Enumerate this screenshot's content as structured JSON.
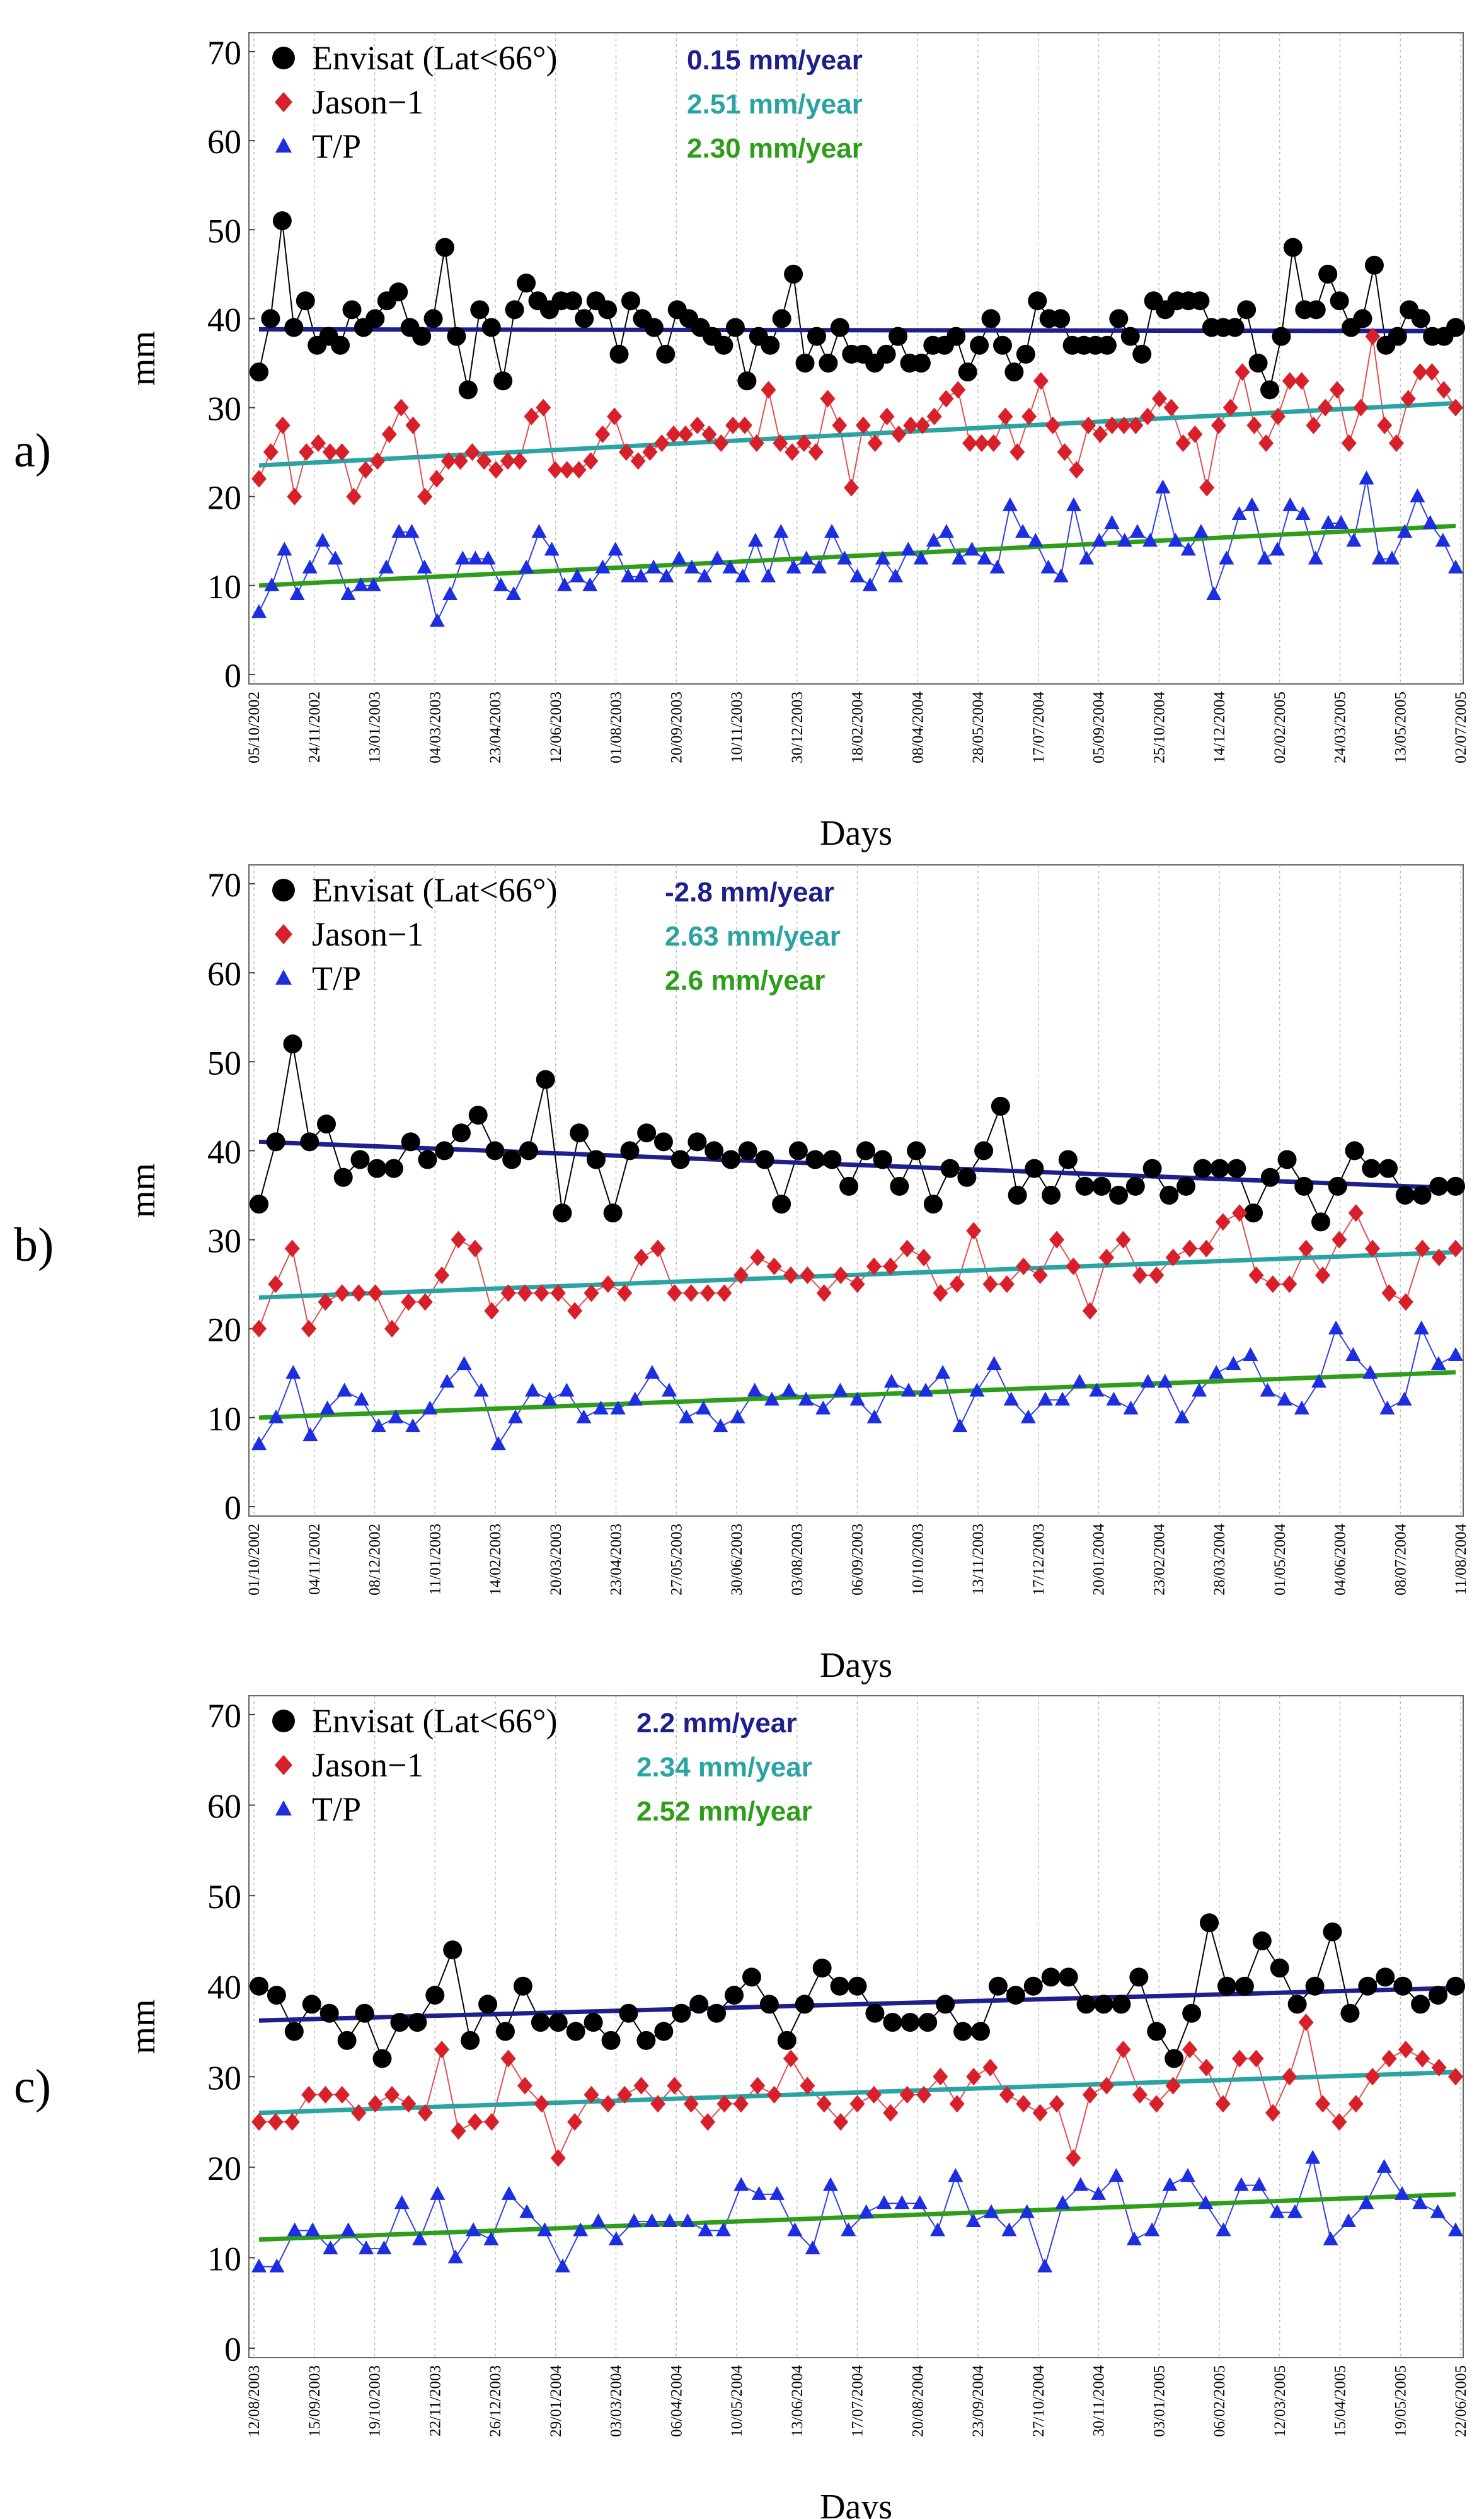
{
  "chart_data": [
    {
      "type": "scatter",
      "panel_label": "a)",
      "xlabel": "Days",
      "ylabel": "mm",
      "ylim": [
        0,
        70
      ],
      "yticks": [
        0,
        10,
        20,
        30,
        40,
        50,
        60,
        70
      ],
      "grid": true,
      "legend": "top-left",
      "x_tick_labels": [
        "05/10/2002",
        "24/11/2002",
        "13/01/2003",
        "04/03/2003",
        "23/04/2003",
        "12/06/2003",
        "01/08/2003",
        "20/09/2003",
        "10/11/2003",
        "30/12/2003",
        "18/02/2004",
        "08/04/2004",
        "28/05/2004",
        "17/07/2004",
        "05/09/2004",
        "25/10/2004",
        "14/12/2004",
        "02/02/2005",
        "24/03/2005",
        "13/05/2005",
        "02/07/2005"
      ],
      "series": [
        {
          "name": "Envisat (Lat<66°)",
          "marker": "circle",
          "color": "#000000",
          "values": [
            34,
            40,
            51,
            39,
            42,
            37,
            38,
            37,
            41,
            39,
            40,
            42,
            43,
            39,
            38,
            40,
            48,
            38,
            32,
            41,
            39,
            33,
            41,
            44,
            42,
            41,
            42,
            42,
            40,
            42,
            41,
            36,
            42,
            40,
            39,
            36,
            41,
            40,
            39,
            38,
            37,
            39,
            33,
            38,
            37,
            40,
            45,
            35,
            38,
            35,
            39,
            36,
            36,
            35,
            36,
            38,
            35,
            35,
            37,
            37,
            38,
            34,
            37,
            40,
            37,
            34,
            36,
            42,
            40,
            40,
            37,
            37,
            37,
            37,
            40,
            38,
            36,
            42,
            41,
            42,
            42,
            42,
            39,
            39,
            39,
            41,
            35,
            32,
            38,
            48,
            41,
            41,
            45,
            42,
            39,
            40,
            46,
            37,
            38,
            41,
            40,
            38,
            38,
            39
          ],
          "trend": [
            38.8,
            38.6
          ],
          "trend_color": "#1f1f8c",
          "trend_label": "0.15 mm/year",
          "line_color": "#000000"
        },
        {
          "name": "Jason−1",
          "marker": "diamond",
          "color": "#d8202a",
          "values": [
            22,
            25,
            28,
            20,
            25,
            26,
            25,
            25,
            20,
            23,
            24,
            27,
            30,
            28,
            20,
            22,
            24,
            24,
            25,
            24,
            23,
            24,
            24,
            29,
            30,
            23,
            23,
            23,
            24,
            27,
            29,
            25,
            24,
            25,
            26,
            27,
            27,
            28,
            27,
            26,
            28,
            28,
            26,
            32,
            26,
            25,
            26,
            25,
            31,
            28,
            21,
            28,
            26,
            29,
            27,
            28,
            28,
            29,
            31,
            32,
            26,
            26,
            26,
            29,
            25,
            29,
            33,
            28,
            25,
            23,
            28,
            27,
            28,
            28,
            28,
            29,
            31,
            30,
            26,
            27,
            21,
            28,
            30,
            34,
            28,
            26,
            29,
            33,
            33,
            28,
            30,
            32,
            26,
            30,
            38,
            28,
            26,
            31,
            34,
            34,
            32,
            30
          ],
          "trend": [
            23.5,
            30.5
          ],
          "trend_color": "#2aa3a3",
          "trend_label": "2.51 mm/year",
          "line_color": "#e05050"
        },
        {
          "name": "T/P",
          "marker": "triangle",
          "color": "#1c2ee0",
          "values": [
            7,
            10,
            14,
            9,
            12,
            15,
            13,
            9,
            10,
            10,
            12,
            16,
            16,
            12,
            6,
            9,
            13,
            13,
            13,
            10,
            9,
            12,
            16,
            14,
            10,
            11,
            10,
            12,
            14,
            11,
            11,
            12,
            11,
            13,
            12,
            11,
            13,
            12,
            11,
            15,
            11,
            16,
            12,
            13,
            12,
            16,
            13,
            11,
            10,
            13,
            11,
            14,
            13,
            15,
            16,
            13,
            14,
            13,
            12,
            19,
            16,
            15,
            12,
            11,
            19,
            13,
            15,
            17,
            15,
            16,
            15,
            21,
            15,
            14,
            16,
            9,
            13,
            18,
            19,
            13,
            14,
            19,
            18,
            13,
            17,
            17,
            15,
            22,
            13,
            13,
            16,
            20,
            17,
            15,
            12
          ],
          "trend": [
            10.0,
            16.7
          ],
          "trend_color": "#2e9e1a",
          "trend_label": "2.30 mm/year",
          "line_color": "#3040e0"
        }
      ]
    },
    {
      "type": "scatter",
      "panel_label": "b)",
      "xlabel": "Days",
      "ylabel": "mm",
      "ylim": [
        0,
        70
      ],
      "yticks": [
        0,
        10,
        20,
        30,
        40,
        50,
        60,
        70
      ],
      "grid": true,
      "legend": "top-left",
      "x_tick_labels": [
        "01/10/2002",
        "04/11/2002",
        "08/12/2002",
        "11/01/2003",
        "14/02/2003",
        "20/03/2003",
        "23/04/2003",
        "27/05/2003",
        "30/06/2003",
        "03/08/2003",
        "06/09/2003",
        "10/10/2003",
        "13/11/2003",
        "17/12/2003",
        "20/01/2004",
        "23/02/2004",
        "28/03/2004",
        "01/05/2004",
        "04/06/2004",
        "08/07/2004",
        "11/08/2004"
      ],
      "series": [
        {
          "name": "Envisat (Lat<66°)",
          "marker": "circle",
          "color": "#000000",
          "values": [
            34,
            41,
            52,
            41,
            43,
            37,
            39,
            38,
            38,
            41,
            39,
            40,
            42,
            44,
            40,
            39,
            40,
            48,
            33,
            42,
            39,
            33,
            40,
            42,
            41,
            39,
            41,
            40,
            39,
            40,
            39,
            34,
            40,
            39,
            39,
            36,
            40,
            39,
            36,
            40,
            34,
            38,
            37,
            40,
            45,
            35,
            38,
            35,
            39,
            36,
            36,
            35,
            36,
            38,
            35,
            36,
            38,
            38,
            38,
            33,
            37,
            39,
            36,
            32,
            36,
            40,
            38,
            38,
            35,
            35,
            36,
            36
          ],
          "trend": [
            41.0,
            35.8
          ],
          "trend_color": "#1f1f8c",
          "trend_label": "-2.8 mm/year",
          "line_color": "#000000"
        },
        {
          "name": "Jason−1",
          "marker": "diamond",
          "color": "#d8202a",
          "values": [
            20,
            25,
            29,
            20,
            23,
            24,
            24,
            24,
            20,
            23,
            23,
            26,
            30,
            29,
            22,
            24,
            24,
            24,
            24,
            22,
            24,
            25,
            24,
            28,
            29,
            24,
            24,
            24,
            24,
            26,
            28,
            27,
            26,
            26,
            24,
            26,
            25,
            27,
            27,
            29,
            28,
            24,
            25,
            31,
            25,
            25,
            27,
            26,
            30,
            27,
            22,
            28,
            30,
            26,
            26,
            28,
            29,
            29,
            32,
            33,
            26,
            25,
            25,
            29,
            26,
            30,
            33,
            29,
            24,
            23,
            29,
            28,
            29
          ],
          "trend": [
            23.5,
            28.6
          ],
          "trend_color": "#2aa3a3",
          "trend_label": "2.63 mm/year",
          "line_color": "#e05050"
        },
        {
          "name": "T/P",
          "marker": "triangle",
          "color": "#1c2ee0",
          "values": [
            7,
            10,
            15,
            8,
            11,
            13,
            12,
            9,
            10,
            9,
            11,
            14,
            16,
            13,
            7,
            10,
            13,
            12,
            13,
            10,
            11,
            11,
            12,
            15,
            13,
            10,
            11,
            9,
            10,
            13,
            12,
            13,
            12,
            11,
            13,
            12,
            10,
            14,
            13,
            13,
            15,
            9,
            13,
            16,
            12,
            10,
            12,
            12,
            14,
            13,
            12,
            11,
            14,
            14,
            10,
            13,
            15,
            16,
            17,
            13,
            12,
            11,
            14,
            20,
            17,
            15,
            11,
            12,
            20,
            16,
            17
          ],
          "trend": [
            10.0,
            15.1
          ],
          "trend_color": "#2e9e1a",
          "trend_label": "2.6 mm/year",
          "line_color": "#3040e0"
        }
      ]
    },
    {
      "type": "scatter",
      "panel_label": "c)",
      "xlabel": "Days",
      "ylabel": "mm",
      "ylim": [
        0,
        70
      ],
      "yticks": [
        0,
        10,
        20,
        30,
        40,
        50,
        60,
        70
      ],
      "grid": true,
      "legend": "top-left",
      "x_tick_labels": [
        "12/08/2003",
        "15/09/2003",
        "19/10/2003",
        "22/11/2003",
        "26/12/2003",
        "29/01/2004",
        "03/03/2004",
        "06/04/2004",
        "10/05/2004",
        "13/06/2004",
        "17/07/2004",
        "20/08/2004",
        "23/09/2004",
        "27/10/2004",
        "30/11/2004",
        "03/01/2005",
        "06/02/2005",
        "12/03/2005",
        "15/04/2005",
        "19/05/2005",
        "22/06/2005"
      ],
      "series": [
        {
          "name": "Envisat (Lat<66°)",
          "marker": "circle",
          "color": "#000000",
          "values": [
            40,
            39,
            35,
            38,
            37,
            34,
            37,
            32,
            36,
            36,
            39,
            44,
            34,
            38,
            35,
            40,
            36,
            36,
            35,
            36,
            34,
            37,
            34,
            35,
            37,
            38,
            37,
            39,
            41,
            38,
            34,
            38,
            42,
            40,
            40,
            37,
            36,
            36,
            36,
            38,
            35,
            35,
            40,
            39,
            40,
            41,
            41,
            38,
            38,
            38,
            41,
            35,
            32,
            37,
            47,
            40,
            40,
            45,
            42,
            38,
            40,
            46,
            37,
            40,
            41,
            40,
            38,
            39,
            40
          ],
          "trend": [
            36.2,
            39.8
          ],
          "trend_color": "#1f1f8c",
          "trend_label": "2.2 mm/year",
          "line_color": "#000000"
        },
        {
          "name": "Jason−1",
          "marker": "diamond",
          "color": "#d8202a",
          "values": [
            25,
            25,
            25,
            28,
            28,
            28,
            26,
            27,
            28,
            27,
            26,
            33,
            24,
            25,
            25,
            32,
            29,
            27,
            21,
            25,
            28,
            27,
            28,
            29,
            27,
            29,
            27,
            25,
            27,
            27,
            29,
            28,
            32,
            29,
            27,
            25,
            27,
            28,
            26,
            28,
            28,
            30,
            27,
            30,
            31,
            28,
            27,
            26,
            27,
            21,
            28,
            29,
            33,
            28,
            27,
            29,
            33,
            31,
            27,
            32,
            32,
            26,
            30,
            36,
            27,
            25,
            27,
            30,
            32,
            33,
            32,
            31,
            30
          ],
          "trend": [
            26.0,
            30.5
          ],
          "trend_color": "#2aa3a3",
          "trend_label": "2.34 mm/year",
          "line_color": "#e05050"
        },
        {
          "name": "T/P",
          "marker": "triangle",
          "color": "#1c2ee0",
          "values": [
            9,
            9,
            13,
            13,
            11,
            13,
            11,
            11,
            16,
            12,
            17,
            10,
            13,
            12,
            17,
            15,
            13,
            9,
            13,
            14,
            12,
            14,
            14,
            14,
            14,
            13,
            13,
            18,
            17,
            17,
            13,
            11,
            18,
            13,
            15,
            16,
            16,
            16,
            13,
            19,
            14,
            15,
            13,
            15,
            9,
            16,
            18,
            17,
            19,
            12,
            13,
            18,
            19,
            16,
            13,
            18,
            18,
            15,
            15,
            21,
            12,
            14,
            16,
            20,
            17,
            16,
            15,
            13
          ],
          "trend": [
            12.0,
            17.0
          ],
          "trend_color": "#2e9e1a",
          "trend_label": "2.52 mm/year",
          "line_color": "#3040e0"
        }
      ]
    }
  ]
}
